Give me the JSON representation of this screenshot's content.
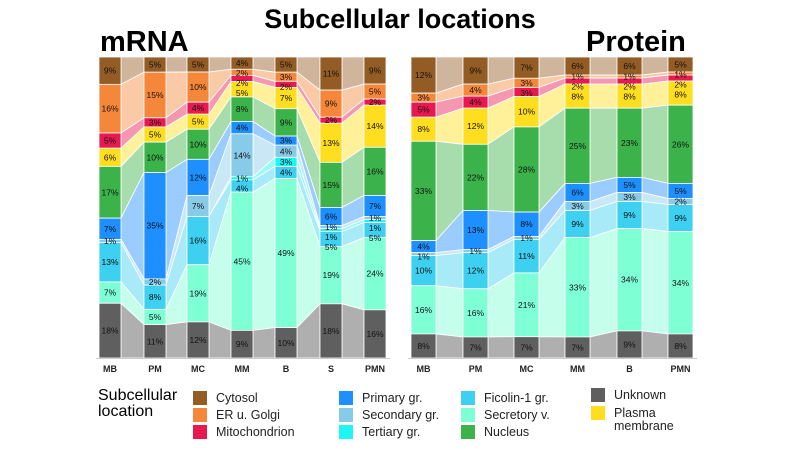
{
  "title": "Subcellular locations",
  "chart_data": [
    {
      "type": "bar",
      "stacked": true,
      "normalized": true,
      "title": "mRNA",
      "categories": [
        "MB",
        "PM",
        "MC",
        "MM",
        "B",
        "S",
        "PMN"
      ],
      "unit": "%",
      "series": [
        {
          "name": "Cytosol",
          "color": "#925c24",
          "values": [
            9,
            5,
            5,
            4,
            5,
            11,
            9
          ]
        },
        {
          "name": "ER u. Golgi",
          "color": "#f5873a",
          "values": [
            16,
            15,
            10,
            2,
            3,
            9,
            5
          ]
        },
        {
          "name": "Mitochondrion",
          "color": "#e8194f",
          "values": [
            5,
            3,
            4,
            2,
            2,
            2,
            2
          ]
        },
        {
          "name": "Plasma membrane",
          "color": "#ffde1f",
          "values": [
            6,
            5,
            5,
            5,
            7,
            13,
            14
          ]
        },
        {
          "name": "Nucleus",
          "color": "#3bb34a",
          "values": [
            17,
            10,
            10,
            8,
            9,
            15,
            16
          ]
        },
        {
          "name": "Primary gr.",
          "color": "#1e8fff",
          "values": [
            7,
            35,
            12,
            4,
            3,
            6,
            7
          ]
        },
        {
          "name": "Secondary gr.",
          "color": "#87cbe8",
          "values": [
            1,
            2,
            7,
            14,
            4,
            1,
            1
          ]
        },
        {
          "name": "Tertiary gr.",
          "color": "#1ef5f5",
          "values": [
            0,
            0,
            0,
            1,
            3,
            1,
            1
          ]
        },
        {
          "name": "Ficolin-1 gr.",
          "color": "#3dd0f0",
          "values": [
            13,
            8,
            16,
            4,
            4,
            5,
            5
          ]
        },
        {
          "name": "Secretory v.",
          "color": "#7fffd4",
          "values": [
            7,
            5,
            19,
            45,
            49,
            19,
            24
          ]
        },
        {
          "name": "Unknown",
          "color": "#5f5f5f",
          "values": [
            18,
            11,
            12,
            9,
            10,
            18,
            16
          ]
        }
      ]
    },
    {
      "type": "bar",
      "stacked": true,
      "normalized": true,
      "title": "Protein",
      "categories": [
        "MB",
        "PM",
        "MC",
        "MM",
        "B",
        "PMN"
      ],
      "unit": "%",
      "series": [
        {
          "name": "Cytosol",
          "color": "#925c24",
          "values": [
            12,
            9,
            7,
            6,
            6,
            5
          ]
        },
        {
          "name": "ER u. Golgi",
          "color": "#f5873a",
          "values": [
            3,
            4,
            3,
            1,
            1,
            1
          ]
        },
        {
          "name": "Mitochondrion",
          "color": "#e8194f",
          "values": [
            5,
            4,
            3,
            2,
            2,
            2
          ]
        },
        {
          "name": "Plasma membrane",
          "color": "#ffde1f",
          "values": [
            8,
            12,
            10,
            8,
            8,
            8
          ]
        },
        {
          "name": "Nucleus",
          "color": "#3bb34a",
          "values": [
            33,
            22,
            28,
            25,
            23,
            26
          ]
        },
        {
          "name": "Primary gr.",
          "color": "#1e8fff",
          "values": [
            4,
            13,
            8,
            6,
            5,
            5
          ]
        },
        {
          "name": "Secondary gr.",
          "color": "#87cbe8",
          "values": [
            1,
            1,
            1,
            3,
            3,
            2
          ]
        },
        {
          "name": "Tertiary gr.",
          "color": "#1ef5f5",
          "values": [
            0,
            0,
            0,
            0,
            0,
            0
          ]
        },
        {
          "name": "Ficolin-1 gr.",
          "color": "#3dd0f0",
          "values": [
            10,
            12,
            11,
            9,
            9,
            9
          ]
        },
        {
          "name": "Secretory v.",
          "color": "#7fffd4",
          "values": [
            16,
            16,
            21,
            33,
            34,
            34
          ]
        },
        {
          "name": "Unknown",
          "color": "#5f5f5f",
          "values": [
            8,
            7,
            7,
            7,
            9,
            8
          ]
        }
      ]
    }
  ],
  "legend": {
    "title": "Subcellular\nlocation",
    "items": [
      {
        "label": "Cytosol",
        "color": "#925c24"
      },
      {
        "label": "ER u. Golgi",
        "color": "#f5873a"
      },
      {
        "label": "Mitochondrion",
        "color": "#e8194f"
      },
      {
        "label": "Primary gr.",
        "color": "#1e8fff"
      },
      {
        "label": "Secondary gr.",
        "color": "#87cbe8"
      },
      {
        "label": "Tertiary gr.",
        "color": "#1ef5f5"
      },
      {
        "label": "Ficolin-1 gr.",
        "color": "#3dd0f0"
      },
      {
        "label": "Secretory v.",
        "color": "#7fffd4"
      },
      {
        "label": "Nucleus",
        "color": "#3bb34a"
      },
      {
        "label": "Unknown",
        "color": "#5f5f5f"
      },
      {
        "label": "Plasma\nmembrane",
        "color": "#ffde1f"
      }
    ]
  }
}
